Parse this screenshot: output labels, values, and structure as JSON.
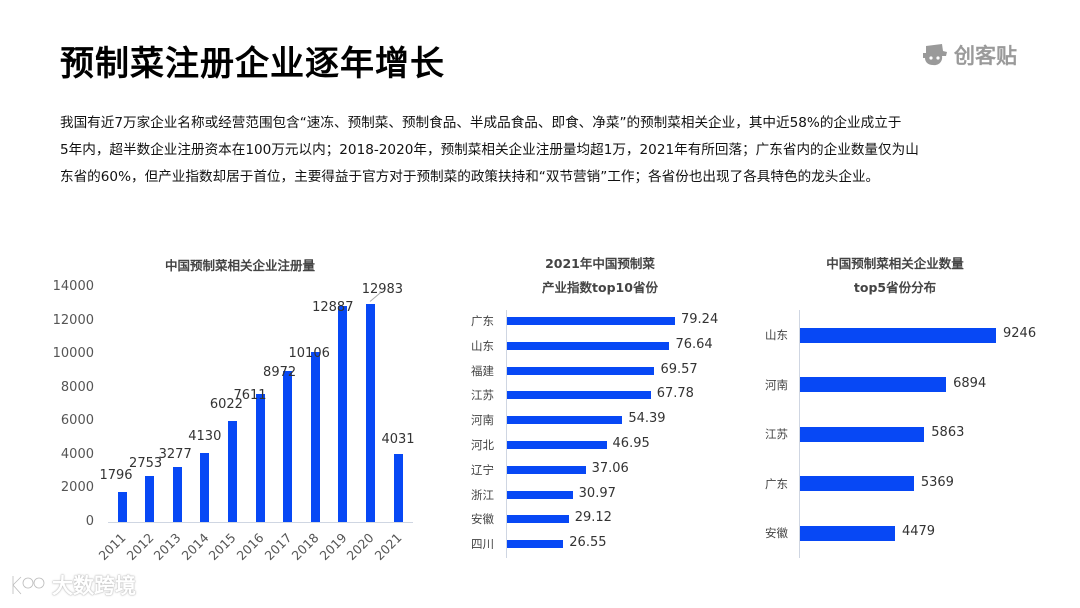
{
  "header": {
    "title": "预制菜注册企业逐年增长",
    "brand_name": "创客贴",
    "brand_icon": "hat-mascot-icon"
  },
  "description": {
    "lines": [
      "我国有近7万家企业名称或经营范围包含“速冻、预制菜、预制食品、半成品食品、即食、净菜”的预制菜相关企业，其中近58%的企业成立于",
      "5年内，超半数企业注册资本在100万元以内；2018-2020年，预制菜相关企业注册量均超1万，2021年有所回落；广东省内的企业数量仅为山",
      "东省的60%，但产业指数却居于首位，主要得益于官方对于预制菜的政策扶持和“双节营销”工作；各省份也出现了各具特色的龙头企业。"
    ]
  },
  "watermark": {
    "text": "大数跨境",
    "logo": "kd-100-logo-icon"
  },
  "colors": {
    "bar": "#0748f5",
    "axis": "#cfd6e2"
  },
  "chart_data": [
    {
      "type": "bar",
      "title": "中国预制菜相关企业注册量",
      "categories": [
        "2011",
        "2012",
        "2013",
        "2014",
        "2015",
        "2016",
        "2017",
        "2018",
        "2019",
        "2020",
        "2021"
      ],
      "values": [
        1796,
        2753,
        3277,
        4130,
        6022,
        7611,
        8972,
        10106,
        12887,
        12983,
        4031
      ],
      "yticks": [
        "0",
        "2000",
        "4000",
        "6000",
        "8000",
        "10000",
        "12000",
        "14000"
      ],
      "ylim": [
        0,
        14000
      ],
      "xlabel": "",
      "ylabel": "",
      "grid": false,
      "data_labels": true,
      "orientation": "vertical"
    },
    {
      "type": "bar",
      "title": "2021年中国预制菜",
      "subtitle": "产业指数top10省份",
      "categories": [
        "广东",
        "山东",
        "福建",
        "江苏",
        "河南",
        "河北",
        "辽宁",
        "浙江",
        "安徽",
        "四川"
      ],
      "values": [
        "79.24",
        "76.64",
        "69.57",
        "67.78",
        "54.39",
        "46.95",
        "37.06",
        "30.97",
        "29.12",
        "26.55"
      ],
      "orientation": "horizontal",
      "xlim": [
        0,
        90
      ],
      "grid": false,
      "data_labels": true
    },
    {
      "type": "bar",
      "title": "中国预制菜相关企业数量",
      "subtitle": "top5省份分布",
      "categories": [
        "山东",
        "河南",
        "江苏",
        "广东",
        "安徽"
      ],
      "values": [
        9246,
        6894,
        5863,
        5369,
        4479
      ],
      "orientation": "horizontal",
      "xlim": [
        0,
        10000
      ],
      "grid": false,
      "data_labels": true
    }
  ]
}
